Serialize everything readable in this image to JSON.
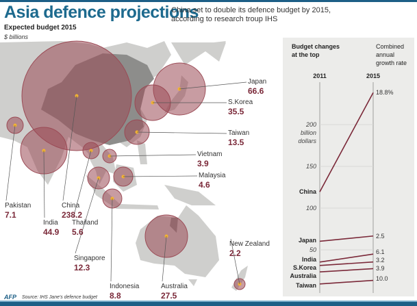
{
  "header": {
    "title": "Asia defence projections",
    "subtitle": "China set to double its defence budget by 2015, according to research troup IHS"
  },
  "map": {
    "title": "Expected budget 2015",
    "unit": "$ billions",
    "circle_color": "#9b4a55",
    "countries": [
      {
        "name": "Japan",
        "value": "66.6"
      },
      {
        "name": "S.Korea",
        "value": "35.5"
      },
      {
        "name": "Taiwan",
        "value": "13.5"
      },
      {
        "name": "Vietnam",
        "value": "3.9"
      },
      {
        "name": "Malaysia",
        "value": "4.6"
      },
      {
        "name": "Pakistan",
        "value": "7.1"
      },
      {
        "name": "China",
        "value": "238.2"
      },
      {
        "name": "India",
        "value": "44.9"
      },
      {
        "name": "Thailand",
        "value": "5.6"
      },
      {
        "name": "Singapore",
        "value": "12.3"
      },
      {
        "name": "Indonesia",
        "value": "8.8"
      },
      {
        "name": "Australia",
        "value": "27.5"
      },
      {
        "name": "New Zealand",
        "value": "2.2"
      }
    ]
  },
  "footer": {
    "logo": "AFP",
    "source": "Source: IHS Jane's defence budget"
  },
  "chart_data": {
    "type": "line",
    "title": "Budget changes at the top",
    "rate_header": "Combined annual growth rate",
    "categories": [
      "2011",
      "2015"
    ],
    "ylabel": "billion dollars",
    "ylim": [
      0,
      250
    ],
    "yticks": [
      "200",
      "150",
      "100",
      "50"
    ],
    "grid": true,
    "line_color": "#7a2838",
    "series": [
      {
        "name": "China",
        "values": [
          119.5,
          238.2
        ],
        "rate": "18.8%"
      },
      {
        "name": "Japan",
        "values": [
          60.3,
          66.6
        ],
        "rate": "2.5"
      },
      {
        "name": "India",
        "values": [
          35.4,
          44.9
        ],
        "rate": "6.1"
      },
      {
        "name": "S.Korea",
        "values": [
          31.3,
          35.5
        ],
        "rate": "3.2"
      },
      {
        "name": "Australia",
        "values": [
          23.6,
          27.5
        ],
        "rate": "3.9"
      },
      {
        "name": "Taiwan",
        "values": [
          9.2,
          13.5
        ],
        "rate": "10.0"
      }
    ]
  }
}
